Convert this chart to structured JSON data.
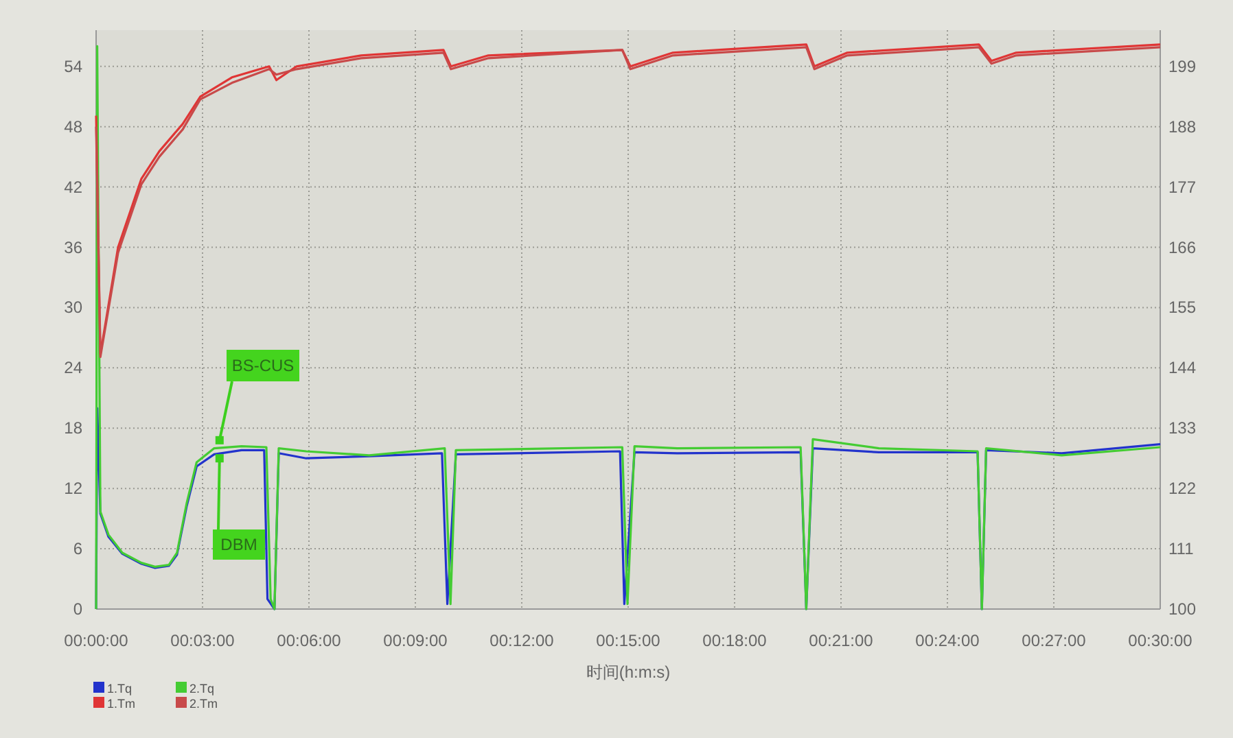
{
  "chart_data": {
    "type": "line",
    "xlabel": "时间(h:m:s)",
    "xlim": [
      0,
      0.5
    ],
    "xticks": [
      {
        "value": 0,
        "label": "00:00:00"
      },
      {
        "value": 0.05,
        "label": "00:03:00"
      },
      {
        "value": 0.1,
        "label": "00:06:00"
      },
      {
        "value": 0.15,
        "label": "00:09:00"
      },
      {
        "value": 0.2,
        "label": "00:12:00"
      },
      {
        "value": 0.25,
        "label": "00:15:00"
      },
      {
        "value": 0.3,
        "label": "00:18:00"
      },
      {
        "value": 0.35,
        "label": "00:21:00"
      },
      {
        "value": 0.4,
        "label": "00:24:00"
      },
      {
        "value": 0.45,
        "label": "00:27:00"
      },
      {
        "value": 0.5,
        "label": "00:30:00"
      }
    ],
    "ylim": [
      0,
      57.6
    ],
    "yticks": [
      0,
      6,
      12,
      18,
      24,
      30,
      36,
      42,
      48,
      54
    ],
    "y2lim": [
      100,
      205.6
    ],
    "y2ticks": [
      100,
      111,
      122,
      133,
      144,
      155,
      166,
      177,
      188,
      199
    ],
    "grid": true,
    "legend": "bottom left",
    "annotations": [
      {
        "text": "BS-CUS",
        "x": 0.058,
        "y": 16.8
      },
      {
        "text": "DBM",
        "x": 0.058,
        "y": 15
      }
    ],
    "series": [
      {
        "name": "1.Tq",
        "color": "#2233cc",
        "x": [
          0,
          0.0005,
          0.002,
          0.0058,
          0.0123,
          0.0213,
          0.0277,
          0.0342,
          0.038,
          0.0425,
          0.0472,
          0.0555,
          0.0683,
          0.079,
          0.0805,
          0.0838,
          0.0858,
          0.0987,
          0.1283,
          0.1625,
          0.165,
          0.169,
          0.2462,
          0.2482,
          0.253,
          0.273,
          0.331,
          0.3337,
          0.3368,
          0.3678,
          0.4142,
          0.4162,
          0.4182,
          0.4537,
          0.5
        ],
        "values": [
          0,
          20,
          9.5,
          7.2,
          5.5,
          4.5,
          4.1,
          4.3,
          5.4,
          10.2,
          14.2,
          15.4,
          15.8,
          15.8,
          1,
          0,
          15.5,
          15,
          15.2,
          15.5,
          0.5,
          15.4,
          15.7,
          0.5,
          15.6,
          15.5,
          15.6,
          0,
          16,
          15.6,
          15.6,
          0,
          15.8,
          15.5,
          16.4
        ]
      },
      {
        "name": "2.Tq",
        "color": "#44cc33",
        "x": [
          0,
          0.0005,
          0.002,
          0.0058,
          0.0123,
          0.0213,
          0.0277,
          0.0342,
          0.038,
          0.0425,
          0.0472,
          0.0555,
          0.0683,
          0.08,
          0.082,
          0.0838,
          0.0858,
          0.0987,
          0.1283,
          0.1638,
          0.1665,
          0.169,
          0.2472,
          0.2497,
          0.253,
          0.273,
          0.331,
          0.3337,
          0.3368,
          0.3678,
          0.4142,
          0.4162,
          0.4182,
          0.4537,
          0.5
        ],
        "values": [
          0,
          56,
          9.7,
          7.4,
          5.6,
          4.6,
          4.2,
          4.4,
          5.6,
          10.5,
          14.6,
          16,
          16.2,
          16.1,
          1,
          0,
          16,
          15.7,
          15.3,
          16,
          0.5,
          15.8,
          16.1,
          0.5,
          16.2,
          16,
          16.1,
          0,
          16.9,
          16,
          15.7,
          0,
          16,
          15.3,
          16.1
        ]
      },
      {
        "name": "1.Tm",
        "color": "#e03535",
        "axis": "y2",
        "x": [
          0,
          0.002,
          0.0103,
          0.0213,
          0.0297,
          0.0407,
          0.049,
          0.0638,
          0.0813,
          0.0847,
          0.0942,
          0.1245,
          0.1632,
          0.1667,
          0.1843,
          0.2472,
          0.251,
          0.271,
          0.3337,
          0.3375,
          0.353,
          0.4148,
          0.4207,
          0.4323,
          0.5
        ],
        "values": [
          190,
          146.5,
          166,
          178.5,
          183.5,
          188.5,
          193.5,
          197,
          199,
          196.5,
          199,
          201,
          202,
          199,
          201,
          202,
          199,
          201.5,
          203,
          199,
          201.5,
          203,
          200,
          201.5,
          203
        ]
      },
      {
        "name": "2.Tm",
        "color": "#c84a4a",
        "axis": "y2",
        "x": [
          0,
          0.002,
          0.0103,
          0.0213,
          0.0297,
          0.0407,
          0.049,
          0.0638,
          0.0813,
          0.0847,
          0.0942,
          0.1245,
          0.1632,
          0.1667,
          0.1843,
          0.2472,
          0.251,
          0.271,
          0.3337,
          0.3375,
          0.353,
          0.4148,
          0.4207,
          0.4323,
          0.5
        ],
        "values": [
          188,
          146,
          165,
          177.5,
          182.5,
          187.5,
          193,
          196,
          198.5,
          197.5,
          198.5,
          200.5,
          201.5,
          198.5,
          200.5,
          202,
          198.5,
          201,
          202.5,
          198.5,
          201,
          202.5,
          199.5,
          201,
          202.5
        ]
      }
    ]
  }
}
